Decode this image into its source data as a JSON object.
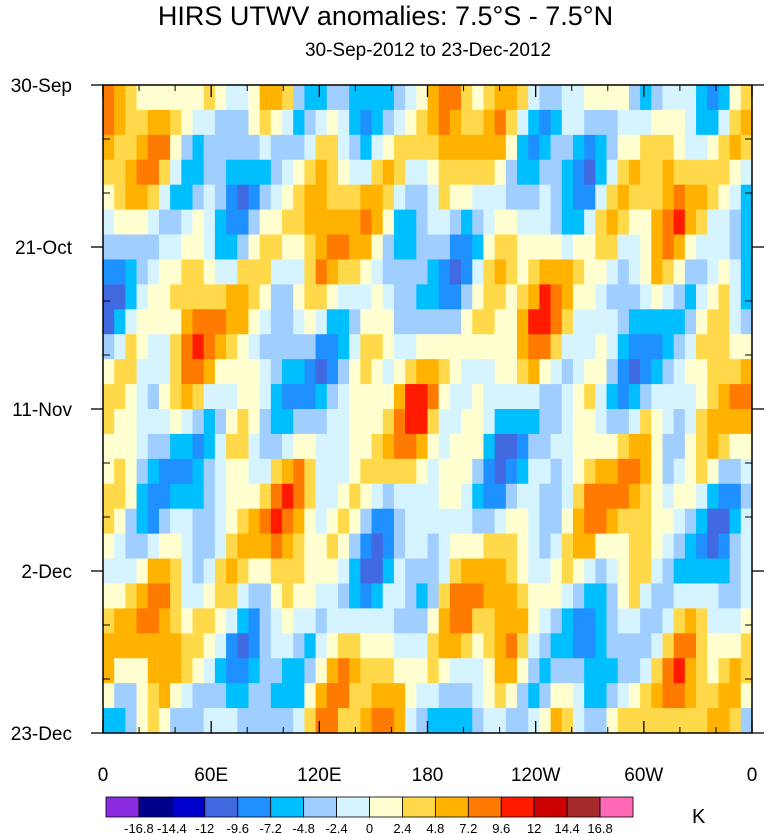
{
  "chart_data": {
    "type": "heatmap",
    "title": "HIRS UTWV anomalies: 7.5°S - 7.5°N",
    "subtitle": "30-Sep-2012 to 23-Dec-2012",
    "x_tick_labels": [
      "0",
      "60E",
      "120E",
      "180",
      "120W",
      "60W",
      "0"
    ],
    "x_range_degrees_east": [
      0,
      360
    ],
    "y_tick_labels": [
      "30-Sep",
      "21-Oct",
      "11-Nov",
      "2-Dec",
      "23-Dec"
    ],
    "y_range": [
      "30-Sep-2012",
      "23-Dec-2012"
    ],
    "colorbar_labels": [
      "-16.8",
      "-14.4",
      "-12",
      "-9.6",
      "-7.2",
      "-4.8",
      "-2.4",
      "0",
      "2.4",
      "4.8",
      "7.2",
      "9.6",
      "12",
      "14.4",
      "16.8"
    ],
    "colorbar_colors": [
      "#8a2be2",
      "#00008b",
      "#0000cd",
      "#4169e1",
      "#1e90ff",
      "#00bfff",
      "#a0cfff",
      "#d6f4ff",
      "#ffffd0",
      "#ffd94a",
      "#ffb300",
      "#ff7a00",
      "#ff1a00",
      "#cc0000",
      "#a52a2a",
      "#ff69b4"
    ],
    "units": "K",
    "anomaly_field_rows": 26,
    "anomaly_field_cols": 58
  }
}
